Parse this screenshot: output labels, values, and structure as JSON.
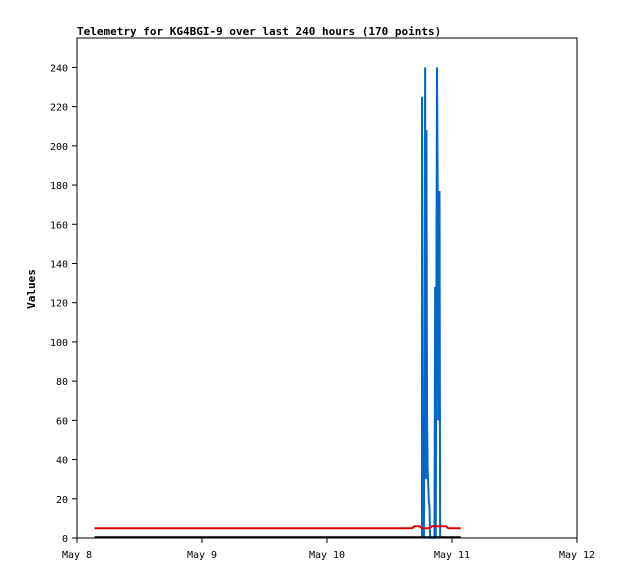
{
  "chart_data": {
    "type": "line",
    "title": "Telemetry for KG4BGI-9 over last 240 hours (170 points)",
    "xlabel": "",
    "ylabel": "Values",
    "xlim": [
      "May 8",
      "May 12"
    ],
    "x_ticks": [
      "May 8",
      "May 9",
      "May 10",
      "May 11",
      "May 12"
    ],
    "ylim": [
      0,
      255
    ],
    "y_ticks": [
      0,
      20,
      40,
      60,
      80,
      100,
      120,
      140,
      160,
      180,
      200,
      220,
      240
    ],
    "grid": false,
    "legend": "none",
    "x_unit": "days since May 8 00:00",
    "series": [
      {
        "name": "",
        "color": "#0066cc",
        "points": [
          [
            2.76,
            0
          ],
          [
            2.76,
            225
          ],
          [
            2.765,
            0
          ],
          [
            2.77,
            40
          ],
          [
            2.775,
            0
          ],
          [
            2.78,
            80
          ],
          [
            2.785,
            240
          ],
          [
            2.79,
            30
          ],
          [
            2.795,
            208
          ],
          [
            2.8,
            64
          ],
          [
            2.805,
            35
          ],
          [
            2.81,
            27
          ],
          [
            2.815,
            18
          ],
          [
            2.82,
            16
          ],
          [
            2.825,
            0
          ],
          [
            2.86,
            0
          ],
          [
            2.865,
            128
          ],
          [
            2.87,
            0
          ],
          [
            2.875,
            120
          ],
          [
            2.88,
            240
          ],
          [
            2.885,
            180
          ],
          [
            2.89,
            60
          ],
          [
            2.895,
            160
          ],
          [
            2.9,
            177
          ],
          [
            2.905,
            0
          ]
        ]
      },
      {
        "name": "",
        "color": "#dd0000",
        "points": [
          [
            0.14,
            5
          ],
          [
            2.68,
            5
          ],
          [
            2.7,
            6
          ],
          [
            2.74,
            6
          ],
          [
            2.76,
            5
          ],
          [
            2.82,
            5
          ],
          [
            2.84,
            6
          ],
          [
            2.9,
            6
          ],
          [
            2.95,
            6
          ],
          [
            2.97,
            5
          ],
          [
            3.07,
            5
          ]
        ]
      },
      {
        "name": "",
        "color": "#000000",
        "points": [
          [
            0.14,
            0.5
          ],
          [
            3.07,
            0.5
          ]
        ]
      }
    ]
  }
}
